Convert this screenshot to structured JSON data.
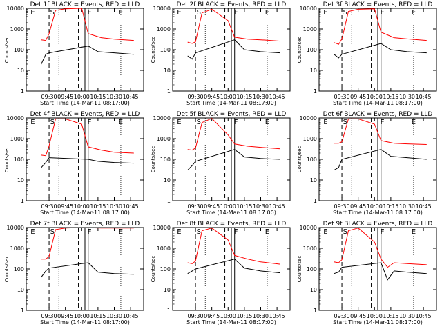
{
  "chart_data": {
    "type": "line",
    "xlabel": "Start Time (14-Mar-11 08:17:00)",
    "ylabel": "Counts/sec",
    "ylim": [
      1,
      10000
    ],
    "ylog": true,
    "x_ticks": [
      "09:30",
      "09:45",
      "10:00",
      "10:15",
      "10:30",
      "10:45"
    ],
    "y_ticks": [
      "1",
      "10",
      "100",
      "1000",
      "10000"
    ],
    "legend": "none",
    "colors": {
      "black": "#000000",
      "red": "#ff0000"
    },
    "panels": [
      {
        "title": "Det 1f BLACK = Events, RED = LLD",
        "markers": [
          "E",
          "S",
          "F",
          "E"
        ],
        "series": [
          {
            "values": [
              [
                9.38,
                300
              ],
              [
                9.45,
                280
              ],
              [
                9.5,
                600
              ],
              [
                9.6,
                8000
              ],
              [
                9.75,
                9500
              ],
              [
                10.0,
                10000
              ],
              [
                10.1,
                600
              ],
              [
                10.3,
                380
              ],
              [
                10.5,
                320
              ],
              [
                10.8,
                280
              ]
            ]
          },
          {
            "values": [
              [
                9.38,
                20
              ],
              [
                9.45,
                60
              ],
              [
                9.5,
                70
              ],
              [
                10.1,
                150
              ],
              [
                10.25,
                80
              ],
              [
                10.5,
                70
              ],
              [
                10.8,
                60
              ]
            ]
          }
        ]
      },
      {
        "title": "Det 2f BLACK = Events, RED = LLD",
        "markers": [
          "E",
          "S",
          "F",
          "E"
        ],
        "series": [
          {
            "values": [
              [
                9.38,
                230
              ],
              [
                9.45,
                200
              ],
              [
                9.5,
                240
              ],
              [
                9.6,
                6000
              ],
              [
                9.75,
                9000
              ],
              [
                10.0,
                2500
              ],
              [
                10.1,
                400
              ],
              [
                10.3,
                320
              ],
              [
                10.5,
                300
              ],
              [
                10.8,
                260
              ]
            ]
          },
          {
            "values": [
              [
                9.38,
                50
              ],
              [
                9.45,
                35
              ],
              [
                9.5,
                70
              ],
              [
                10.1,
                300
              ],
              [
                10.25,
                100
              ],
              [
                10.5,
                80
              ],
              [
                10.8,
                70
              ]
            ]
          }
        ]
      },
      {
        "title": "Det 3f BLACK = Events, RED = LLD",
        "markers": [
          "E",
          "S",
          "F",
          "E"
        ],
        "series": [
          {
            "values": [
              [
                9.38,
                220
              ],
              [
                9.45,
                180
              ],
              [
                9.5,
                330
              ],
              [
                9.6,
                7000
              ],
              [
                9.75,
                9000
              ],
              [
                10.0,
                9500
              ],
              [
                10.1,
                700
              ],
              [
                10.3,
                380
              ],
              [
                10.5,
                330
              ],
              [
                10.8,
                280
              ]
            ]
          },
          {
            "values": [
              [
                9.38,
                60
              ],
              [
                9.45,
                40
              ],
              [
                9.5,
                60
              ],
              [
                10.1,
                200
              ],
              [
                10.25,
                100
              ],
              [
                10.5,
                80
              ],
              [
                10.8,
                70
              ]
            ]
          }
        ]
      },
      {
        "title": "Det 4f BLACK = Events, RED = LLD",
        "markers": [
          "E",
          "S",
          "F",
          "E"
        ],
        "series": [
          {
            "values": [
              [
                9.38,
                160
              ],
              [
                9.45,
                150
              ],
              [
                9.5,
                450
              ],
              [
                9.6,
                9000
              ],
              [
                9.75,
                9000
              ],
              [
                10.0,
                5000
              ],
              [
                10.1,
                400
              ],
              [
                10.3,
                280
              ],
              [
                10.5,
                220
              ],
              [
                10.8,
                200
              ]
            ]
          },
          {
            "values": [
              [
                9.38,
                40
              ],
              [
                9.45,
                70
              ],
              [
                9.5,
                120
              ],
              [
                10.1,
                100
              ],
              [
                10.25,
                80
              ],
              [
                10.5,
                70
              ],
              [
                10.8,
                65
              ]
            ]
          }
        ]
      },
      {
        "title": "Det 5f BLACK = Events, RED = LLD",
        "markers": [
          "E",
          "S",
          "F",
          "E"
        ],
        "series": [
          {
            "values": [
              [
                9.38,
                300
              ],
              [
                9.45,
                280
              ],
              [
                9.5,
                350
              ],
              [
                9.6,
                6000
              ],
              [
                9.75,
                9500
              ],
              [
                10.0,
                1500
              ],
              [
                10.1,
                550
              ],
              [
                10.3,
                430
              ],
              [
                10.5,
                380
              ],
              [
                10.8,
                320
              ]
            ]
          },
          {
            "values": [
              [
                9.38,
                30
              ],
              [
                9.45,
                50
              ],
              [
                9.5,
                80
              ],
              [
                10.1,
                300
              ],
              [
                10.25,
                130
              ],
              [
                10.5,
                110
              ],
              [
                10.8,
                100
              ]
            ]
          }
        ]
      },
      {
        "title": "Det 6f BLACK = Events, RED = LLD",
        "markers": [
          "E",
          "S",
          "F",
          "E"
        ],
        "series": [
          {
            "values": [
              [
                9.38,
                600
              ],
              [
                9.45,
                600
              ],
              [
                9.5,
                700
              ],
              [
                9.6,
                9000
              ],
              [
                9.75,
                9000
              ],
              [
                10.0,
                5000
              ],
              [
                10.1,
                800
              ],
              [
                10.3,
                600
              ],
              [
                10.5,
                560
              ],
              [
                10.8,
                520
              ]
            ]
          },
          {
            "values": [
              [
                9.38,
                30
              ],
              [
                9.45,
                40
              ],
              [
                9.5,
                100
              ],
              [
                10.1,
                300
              ],
              [
                10.25,
                140
              ],
              [
                10.5,
                120
              ],
              [
                10.8,
                100
              ]
            ]
          }
        ]
      },
      {
        "title": "Det 7f BLACK = Events, RED = LLD",
        "markers": [
          "E",
          "S",
          "F",
          "E"
        ],
        "series": [
          {
            "values": [
              [
                9.38,
                300
              ],
              [
                9.45,
                300
              ],
              [
                9.5,
                400
              ],
              [
                9.6,
                8000
              ],
              [
                9.75,
                9500
              ],
              [
                10.0,
                10000
              ],
              [
                10.1,
                9800
              ],
              [
                10.3,
                9500
              ],
              [
                10.5,
                9500
              ],
              [
                10.8,
                9500
              ]
            ]
          },
          {
            "values": [
              [
                9.38,
                40
              ],
              [
                9.45,
                80
              ],
              [
                9.5,
                110
              ],
              [
                10.1,
                200
              ],
              [
                10.25,
                70
              ],
              [
                10.5,
                60
              ],
              [
                10.8,
                55
              ]
            ]
          }
        ]
      },
      {
        "title": "Det 8f BLACK = Events, RED = LLD",
        "markers": [
          "E",
          "S",
          "F",
          "E"
        ],
        "series": [
          {
            "values": [
              [
                9.38,
                200
              ],
              [
                9.45,
                180
              ],
              [
                9.5,
                240
              ],
              [
                9.6,
                7000
              ],
              [
                9.75,
                9500
              ],
              [
                10.0,
                2500
              ],
              [
                10.1,
                450
              ],
              [
                10.3,
                300
              ],
              [
                10.5,
                220
              ],
              [
                10.8,
                170
              ]
            ]
          },
          {
            "values": [
              [
                9.38,
                60
              ],
              [
                9.45,
                80
              ],
              [
                9.5,
                100
              ],
              [
                10.1,
                300
              ],
              [
                10.25,
                110
              ],
              [
                10.5,
                80
              ],
              [
                10.8,
                65
              ]
            ]
          }
        ]
      },
      {
        "title": "Det 9f BLACK = Events, RED = LLD",
        "markers": [
          "E",
          "S",
          "F",
          "E"
        ],
        "series": [
          {
            "values": [
              [
                9.38,
                220
              ],
              [
                9.45,
                200
              ],
              [
                9.5,
                280
              ],
              [
                9.6,
                7000
              ],
              [
                9.75,
                9500
              ],
              [
                10.0,
                2000
              ],
              [
                10.1,
                300
              ],
              [
                10.2,
                120
              ],
              [
                10.3,
                200
              ],
              [
                10.5,
                180
              ],
              [
                10.8,
                160
              ]
            ]
          },
          {
            "values": [
              [
                9.38,
                60
              ],
              [
                9.45,
                70
              ],
              [
                9.5,
                120
              ],
              [
                10.1,
                200
              ],
              [
                10.2,
                30
              ],
              [
                10.3,
                80
              ],
              [
                10.5,
                70
              ],
              [
                10.8,
                60
              ]
            ]
          }
        ]
      }
    ]
  }
}
